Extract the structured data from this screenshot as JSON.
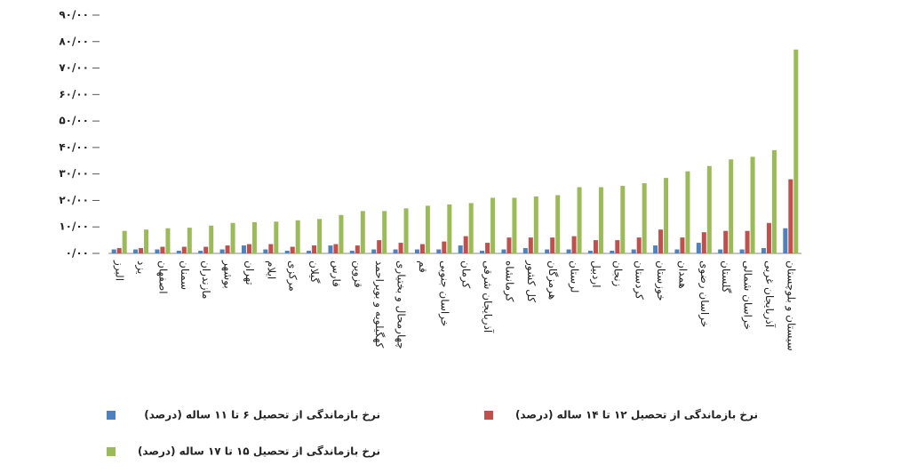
{
  "chart_data": {
    "type": "bar",
    "categories": [
      "البرز",
      "یزد",
      "اصفهان",
      "سمنان",
      "مازندران",
      "بوشهر",
      "تهران",
      "ایلام",
      "مرکزی",
      "گیلان",
      "فارس",
      "قزوین",
      "کهگیلویه و بویراحمد",
      "چهارمحال و بختیاری",
      "قم",
      "خراسان جنوبی",
      "کرمان",
      "آذربایجان شرقی",
      "کرمانشاه",
      "کل کشور",
      "هرمزگان",
      "لرستان",
      "اردبیل",
      "زنجان",
      "کردستان",
      "خوزستان",
      "همدان",
      "خراسان رضوی",
      "گلستان",
      "خراسان شمالی",
      "آذربایجان غربی",
      "سیستان و بلوچستان"
    ],
    "series": [
      {
        "name": "نرخ بازماندگی از تحصیل ۶ تا ۱۱ ساله (درصد)",
        "color": "#4f81bd",
        "values": [
          1.5,
          1.5,
          1.5,
          1,
          1,
          1.5,
          3,
          1.5,
          1,
          1,
          3,
          1,
          1.5,
          1.5,
          1.5,
          1.5,
          3,
          1,
          1.5,
          2,
          1.5,
          1.5,
          1,
          1,
          1.5,
          3,
          1.5,
          4,
          1.5,
          1.5,
          2,
          9.5
        ]
      },
      {
        "name": "نرخ بازماندگی از تحصیل ۱۲ تا ۱۴ ساله (درصد)",
        "color": "#c0504d",
        "values": [
          2,
          2,
          2.5,
          2.5,
          2.5,
          3,
          3.5,
          3.5,
          2.5,
          3,
          3.5,
          3,
          5,
          4,
          3.5,
          4.5,
          6.5,
          4,
          6,
          6,
          6,
          6.5,
          5,
          5,
          6,
          9,
          6,
          8,
          8.5,
          8.5,
          11.5,
          28
        ]
      },
      {
        "name": "نرخ بازماندگی از تحصیل ۱۵ تا ۱۷ ساله (درصد)",
        "color": "#9bbb59",
        "values": [
          8.5,
          9,
          9.5,
          9.7,
          10.5,
          11.5,
          11.8,
          12,
          12.5,
          13,
          14.5,
          16,
          16,
          17,
          18,
          18.5,
          19,
          21,
          21,
          21.5,
          22,
          25,
          25,
          25.5,
          26.5,
          28.5,
          31,
          33,
          35.5,
          36.5,
          39,
          77
        ]
      }
    ],
    "ylim": [
      0,
      90
    ],
    "yticks": [
      {
        "value": 0,
        "label": "۰/۰۰"
      },
      {
        "value": 10,
        "label": "۱۰/۰۰"
      },
      {
        "value": 20,
        "label": "۲۰/۰۰"
      },
      {
        "value": 30,
        "label": "۳۰/۰۰"
      },
      {
        "value": 40,
        "label": "۴۰/۰۰"
      },
      {
        "value": 50,
        "label": "۵۰/۰۰"
      },
      {
        "value": 60,
        "label": "۶۰/۰۰"
      },
      {
        "value": 70,
        "label": "۷۰/۰۰"
      },
      {
        "value": 80,
        "label": "۸۰/۰۰"
      },
      {
        "value": 90,
        "label": "۹۰/۰۰"
      }
    ],
    "grid": false
  }
}
